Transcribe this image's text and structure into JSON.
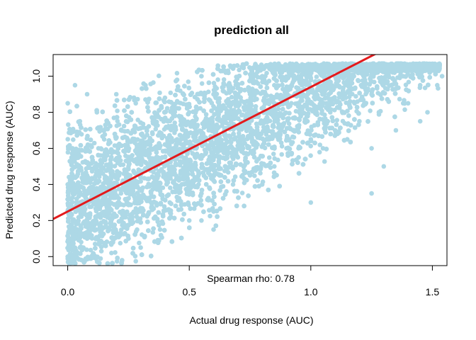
{
  "chart_data": {
    "type": "scatter",
    "title": "prediction all",
    "xlabel": "Actual drug response (AUC)",
    "ylabel": "Predicted drug response (AUC)",
    "xlim": [
      -0.06,
      1.56
    ],
    "ylim": [
      -0.05,
      1.12
    ],
    "x_ticks": [
      0.0,
      0.5,
      1.0,
      1.5
    ],
    "x_tick_labels": [
      "0.0",
      "0.5",
      "1.0",
      "1.5"
    ],
    "y_ticks": [
      0.0,
      0.2,
      0.4,
      0.6,
      0.8,
      1.0
    ],
    "y_tick_labels": [
      "0.0",
      "0.2",
      "0.4",
      "0.6",
      "0.8",
      "1.0"
    ],
    "annotation": "Spearman rho: 0.78",
    "grid": false,
    "point_color": "#ADD8E6",
    "line_color": "#E31A1C",
    "fit_line": {
      "intercept": 0.25,
      "slope": 0.69
    },
    "series": [
      {
        "x": [
          0.0,
          0.0,
          0.0,
          0.01,
          0.02,
          0.02,
          0.03,
          0.04,
          0.05,
          0.05,
          0.06,
          0.08,
          0.1,
          0.1,
          0.12,
          0.12,
          0.15,
          0.18,
          0.2,
          0.2,
          0.22,
          0.25,
          0.25,
          0.28,
          0.3,
          0.3,
          0.32,
          0.35,
          0.35,
          0.38,
          0.4,
          0.4,
          0.42,
          0.45,
          0.45,
          0.48,
          0.5,
          0.5,
          0.52,
          0.55,
          0.55,
          0.58,
          0.6,
          0.6,
          0.62,
          0.65,
          0.65,
          0.68,
          0.7,
          0.7,
          0.72,
          0.75,
          0.75,
          0.78,
          0.8,
          0.8,
          0.82,
          0.85,
          0.85,
          0.88,
          0.9,
          0.9,
          0.92,
          0.95,
          0.95,
          0.98,
          1.0,
          1.0,
          1.02,
          1.05,
          1.05,
          1.08,
          1.1,
          1.1,
          1.12,
          1.15,
          1.15,
          1.18,
          1.2,
          1.2,
          1.22,
          1.25,
          1.25,
          1.28,
          1.3,
          1.3,
          1.33,
          1.35,
          1.38,
          1.4,
          1.42,
          1.45,
          1.48,
          1.5,
          1.52,
          1.54,
          0.02,
          0.05,
          0.08,
          0.15,
          0.3,
          0.6,
          1.25,
          1.45,
          1.0,
          0.55
        ],
        "y": [
          0.0,
          0.4,
          0.85,
          0.1,
          0.6,
          0.2,
          0.95,
          0.5,
          0.05,
          0.75,
          0.3,
          0.9,
          0.15,
          0.55,
          0.8,
          0.35,
          0.65,
          0.02,
          0.45,
          0.9,
          0.7,
          0.1,
          0.5,
          0.85,
          0.25,
          0.6,
          0.95,
          0.4,
          0.75,
          0.15,
          0.55,
          0.88,
          0.3,
          0.65,
          0.98,
          0.45,
          0.2,
          0.8,
          0.6,
          0.35,
          1.0,
          0.7,
          0.25,
          0.9,
          0.5,
          0.65,
          1.02,
          0.4,
          0.8,
          0.55,
          1.05,
          0.45,
          0.9,
          0.7,
          0.4,
          1.0,
          0.75,
          0.5,
          0.95,
          0.7,
          0.6,
          1.05,
          0.85,
          0.55,
          1.0,
          0.75,
          0.65,
          1.06,
          0.9,
          0.6,
          1.0,
          0.8,
          0.7,
          1.05,
          0.9,
          0.65,
          1.02,
          0.85,
          0.75,
          1.05,
          0.95,
          0.35,
          0.9,
          0.8,
          0.5,
          1.05,
          0.95,
          0.7,
          1.0,
          0.85,
          1.05,
          0.95,
          0.8,
          1.04,
          0.95,
          1.0,
          0.0,
          0.3,
          0.1,
          0.7,
          0.05,
          0.15,
          0.6,
          0.75,
          0.3,
          0.2
        ]
      }
    ]
  }
}
